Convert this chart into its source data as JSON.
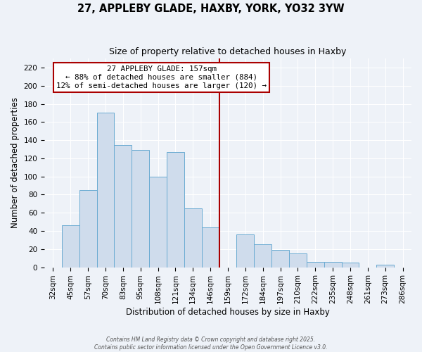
{
  "title": "27, APPLEBY GLADE, HAXBY, YORK, YO32 3YW",
  "subtitle": "Size of property relative to detached houses in Haxby",
  "xlabel": "Distribution of detached houses by size in Haxby",
  "ylabel": "Number of detached properties",
  "bin_labels": [
    "32sqm",
    "45sqm",
    "57sqm",
    "70sqm",
    "83sqm",
    "95sqm",
    "108sqm",
    "121sqm",
    "134sqm",
    "146sqm",
    "159sqm",
    "172sqm",
    "184sqm",
    "197sqm",
    "210sqm",
    "222sqm",
    "235sqm",
    "248sqm",
    "261sqm",
    "273sqm",
    "286sqm"
  ],
  "bar_heights": [
    0,
    46,
    85,
    170,
    135,
    129,
    100,
    127,
    65,
    44,
    0,
    36,
    25,
    19,
    15,
    6,
    6,
    5,
    0,
    3,
    0
  ],
  "bar_color": "#cfdcec",
  "bar_edge_color": "#6aabd2",
  "vline_color": "#aa0000",
  "annotation_text": "27 APPLEBY GLADE: 157sqm\n← 88% of detached houses are smaller (884)\n12% of semi-detached houses are larger (120) →",
  "annotation_box_edge": "#aa0000",
  "annotation_box_bg": "#ffffff",
  "ylim": [
    0,
    230
  ],
  "yticks": [
    0,
    20,
    40,
    60,
    80,
    100,
    120,
    140,
    160,
    180,
    200,
    220
  ],
  "footer_line1": "Contains HM Land Registry data © Crown copyright and database right 2025.",
  "footer_line2": "Contains public sector information licensed under the Open Government Licence v3.0.",
  "background_color": "#eef2f8",
  "grid_color": "#ffffff",
  "title_fontsize": 10.5,
  "subtitle_fontsize": 9,
  "axis_label_fontsize": 8.5,
  "tick_fontsize": 7.5
}
